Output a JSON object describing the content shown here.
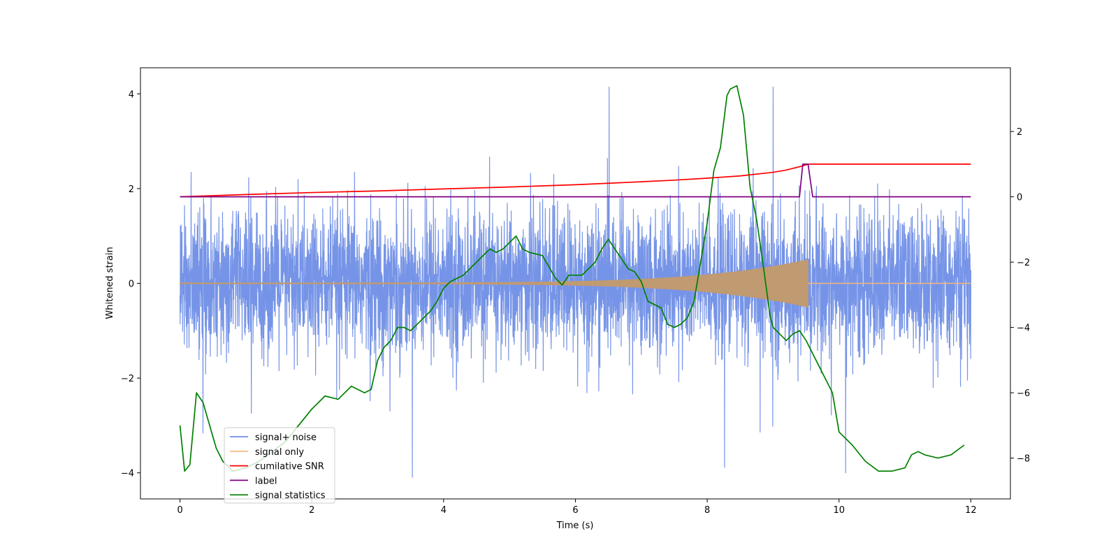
{
  "chart_data": {
    "type": "line",
    "xlabel": "Time (s)",
    "ylabel": "Whitened strain",
    "xlim": [
      -0.6,
      12.6
    ],
    "ylim_left": [
      -4.55,
      4.55
    ],
    "ylim_right": [
      -9.25,
      3.95
    ],
    "x_ticks": [
      0,
      2,
      4,
      6,
      8,
      10,
      12
    ],
    "y_left_ticks": [
      -4,
      -2,
      0,
      2,
      4
    ],
    "y_right_ticks": [
      -8,
      -6,
      -4,
      -2,
      0,
      2
    ],
    "legend_position": "lower-left",
    "series": [
      {
        "name": "signal+ noise",
        "axis": "left",
        "color": "#6f8ee6",
        "description_values": {
          "x_range": [
            0,
            12
          ],
          "noise_std": 0.75,
          "typical_range": [
            -2.2,
            2.2
          ],
          "peaks_max": 4.15,
          "peaks_min": -4.1
        }
      },
      {
        "name": "signal only",
        "axis": "left",
        "color": "#f5b57a",
        "chirp": {
          "start": 0,
          "end": 9.53,
          "amplitude_start": 0.01,
          "amplitude_end": 0.5,
          "post_value": 0
        }
      },
      {
        "name": "cumilative SNR",
        "axis": "right",
        "color": "#ff0000",
        "x": [
          0,
          1,
          2,
          3,
          4,
          5,
          6,
          7,
          7.5,
          8,
          8.5,
          9,
          9.2,
          9.4,
          9.53,
          10,
          11,
          12
        ],
        "y": [
          0,
          0.07,
          0.13,
          0.18,
          0.24,
          0.3,
          0.37,
          0.46,
          0.51,
          0.57,
          0.64,
          0.75,
          0.82,
          0.92,
          1.0,
          1.0,
          1.0,
          1.0
        ]
      },
      {
        "name": "label",
        "axis": "right",
        "color": "#800080",
        "x": [
          0,
          9.4,
          9.45,
          9.53,
          9.6,
          12
        ],
        "y": [
          0,
          0,
          1.0,
          1.0,
          0,
          0
        ]
      },
      {
        "name": "signal statistics",
        "axis": "right",
        "color": "#008000",
        "x": [
          0,
          0.07,
          0.15,
          0.25,
          0.35,
          0.45,
          0.55,
          0.65,
          0.8,
          1.0,
          1.2,
          1.4,
          1.6,
          1.8,
          2.0,
          2.2,
          2.4,
          2.6,
          2.8,
          2.9,
          3.0,
          3.1,
          3.2,
          3.3,
          3.4,
          3.5,
          3.6,
          3.8,
          3.9,
          4.0,
          4.1,
          4.3,
          4.5,
          4.6,
          4.7,
          4.8,
          4.9,
          5.0,
          5.1,
          5.2,
          5.3,
          5.5,
          5.7,
          5.8,
          5.9,
          6.1,
          6.2,
          6.3,
          6.4,
          6.5,
          6.6,
          6.8,
          6.9,
          7.0,
          7.1,
          7.3,
          7.4,
          7.5,
          7.6,
          7.7,
          7.8,
          7.9,
          8.0,
          8.1,
          8.2,
          8.3,
          8.35,
          8.45,
          8.55,
          8.65,
          8.75,
          8.85,
          8.95,
          9.0,
          9.1,
          9.2,
          9.3,
          9.4,
          9.5,
          9.6,
          9.7,
          9.8,
          9.9,
          10.0,
          10.2,
          10.4,
          10.6,
          10.8,
          11.0,
          11.1,
          11.2,
          11.3,
          11.5,
          11.7,
          11.9
        ],
        "y": [
          -7.0,
          -8.4,
          -8.2,
          -6.0,
          -6.3,
          -7.0,
          -7.7,
          -8.1,
          -8.4,
          -8.3,
          -8.1,
          -7.8,
          -7.5,
          -7.0,
          -6.5,
          -6.1,
          -6.2,
          -5.8,
          -6.0,
          -5.9,
          -5.0,
          -4.6,
          -4.4,
          -4.0,
          -4.0,
          -4.1,
          -3.9,
          -3.5,
          -3.2,
          -2.8,
          -2.6,
          -2.4,
          -2.0,
          -1.8,
          -1.6,
          -1.7,
          -1.6,
          -1.4,
          -1.2,
          -1.6,
          -1.7,
          -1.8,
          -2.5,
          -2.7,
          -2.4,
          -2.4,
          -2.2,
          -2.0,
          -1.6,
          -1.3,
          -1.6,
          -2.2,
          -2.3,
          -2.6,
          -3.2,
          -3.4,
          -3.9,
          -4.0,
          -3.9,
          -3.7,
          -3.2,
          -2.0,
          -0.8,
          0.8,
          1.5,
          3.1,
          3.3,
          3.4,
          2.5,
          0.3,
          -0.7,
          -2.1,
          -3.6,
          -4.0,
          -4.2,
          -4.4,
          -4.2,
          -4.1,
          -4.4,
          -4.8,
          -5.2,
          -5.6,
          -6.0,
          -7.2,
          -7.6,
          -8.1,
          -8.4,
          -8.4,
          -8.3,
          -7.9,
          -7.8,
          -7.9,
          -8.0,
          -7.9,
          -7.6
        ]
      }
    ]
  }
}
